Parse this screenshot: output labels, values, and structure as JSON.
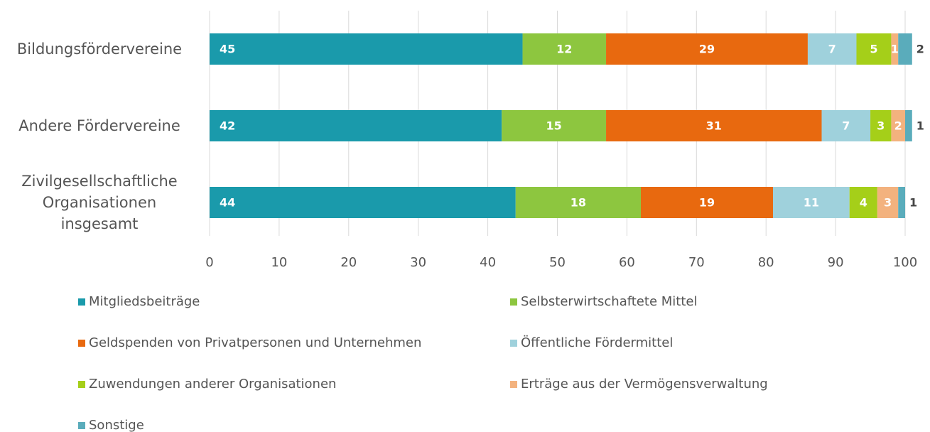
{
  "chart_data": {
    "type": "stacked-bar-horizontal",
    "categories": [
      "Bildungsfördervereine",
      "Andere Fördervereine",
      "Zivilgesellschaftliche Organisationen insgesamt"
    ],
    "series": [
      {
        "name": "Mitgliedsbeiträge",
        "color": "#1a9aab",
        "values": [
          45,
          42,
          44
        ]
      },
      {
        "name": "Selbsterwirtschaftete Mittel",
        "color": "#8dc63f",
        "values": [
          12,
          15,
          18
        ]
      },
      {
        "name": "Geldspenden von Privatpersonen und Unternehmen",
        "color": "#e8690f",
        "values": [
          29,
          31,
          19
        ]
      },
      {
        "name": "Öffentliche Fördermittel",
        "color": "#9fd1dc",
        "values": [
          7,
          7,
          11
        ]
      },
      {
        "name": "Zuwendungen anderer Organisationen",
        "color": "#a5cf19",
        "values": [
          5,
          3,
          4
        ]
      },
      {
        "name": "Erträge aus der Vermögensverwaltung",
        "color": "#f3b27e",
        "values": [
          1,
          2,
          3
        ]
      },
      {
        "name": "Sonstige",
        "color": "#5aacbb",
        "values": [
          2,
          1,
          1
        ]
      }
    ],
    "xlim": [
      0,
      100
    ],
    "xticks": [
      0,
      10,
      20,
      30,
      40,
      50,
      60,
      70,
      80,
      90,
      100
    ],
    "grid": true
  }
}
